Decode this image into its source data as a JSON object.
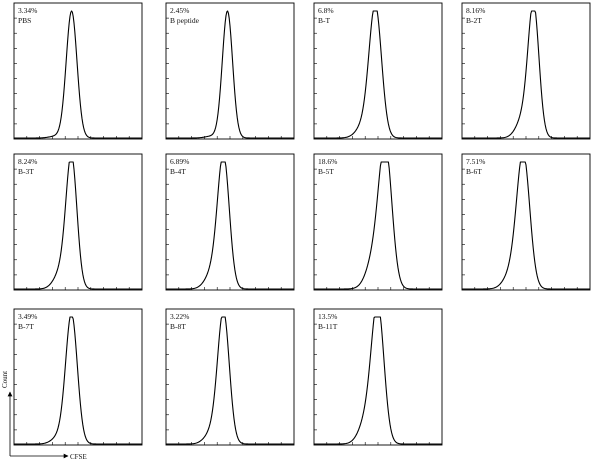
{
  "chart_data": {
    "type": "histogram-grid",
    "xlabel": "CFSE",
    "ylabel": "Count",
    "panels": [
      {
        "percent": "3.34%",
        "name": "PBS",
        "peak": 0.45,
        "width": 0.042,
        "shoulder": 0.0
      },
      {
        "percent": "2.45%",
        "name": "B peptide",
        "peak": 0.48,
        "width": 0.04,
        "shoulder": 0.0
      },
      {
        "percent": "6.8%",
        "name": "B-T",
        "peak": 0.48,
        "width": 0.048,
        "shoulder": 0.1
      },
      {
        "percent": "8.16%",
        "name": "B-2T",
        "peak": 0.56,
        "width": 0.042,
        "shoulder": 0.16
      },
      {
        "percent": "8.24%",
        "name": "B-3T",
        "peak": 0.45,
        "width": 0.042,
        "shoulder": 0.14
      },
      {
        "percent": "6.89%",
        "name": "B-4T",
        "peak": 0.45,
        "width": 0.045,
        "shoulder": 0.14
      },
      {
        "percent": "18.6%",
        "name": "B-5T",
        "peak": 0.56,
        "width": 0.05,
        "shoulder": 0.28
      },
      {
        "percent": "7.51%",
        "name": "B-6T",
        "peak": 0.48,
        "width": 0.05,
        "shoulder": 0.14
      },
      {
        "percent": "3.49%",
        "name": "B-7T",
        "peak": 0.45,
        "width": 0.045,
        "shoulder": 0.06
      },
      {
        "percent": "3.22%",
        "name": "B-8T",
        "peak": 0.45,
        "width": 0.045,
        "shoulder": 0.1
      },
      {
        "percent": "13.5%",
        "name": "B-11T",
        "peak": 0.5,
        "width": 0.048,
        "shoulder": 0.22
      }
    ]
  }
}
